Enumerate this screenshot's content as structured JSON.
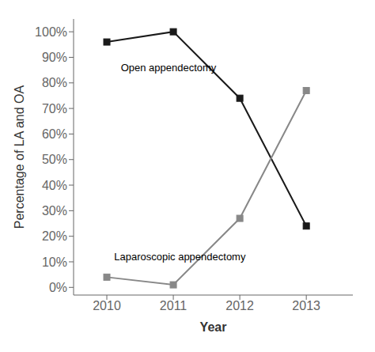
{
  "chart_data": {
    "type": "line",
    "xlabel": "Year",
    "ylabel": "Percentage of LA and OA",
    "x": [
      2010,
      2011,
      2012,
      2013
    ],
    "series": [
      {
        "color": "#1a1a1a",
        "marker": "square",
        "values": [
          96,
          100,
          74,
          24
        ]
      },
      {
        "color": "#888888",
        "marker": "square",
        "values": [
          4,
          1,
          27,
          77
        ]
      }
    ],
    "xlim": [
      2009.5,
      2013.7
    ],
    "xticks": [
      2010,
      2011,
      2012,
      2013
    ],
    "ylim": [
      -3,
      105
    ],
    "yticks": [
      {
        "value": 0,
        "label": "0%"
      },
      {
        "value": 10,
        "label": "10%"
      },
      {
        "value": 20,
        "label": "20%"
      },
      {
        "value": 30,
        "label": "30%"
      },
      {
        "value": 40,
        "label": "40%"
      },
      {
        "value": 50,
        "label": "50%"
      },
      {
        "value": 60,
        "label": "60%"
      },
      {
        "value": 70,
        "label": "70%"
      },
      {
        "value": 80,
        "label": "80%"
      },
      {
        "value": 90,
        "label": "90%"
      },
      {
        "value": 100,
        "label": "100%"
      }
    ],
    "grid": false,
    "annotations": [
      {
        "text": "Open appendectomy",
        "x": 2010.15,
        "y": 86
      },
      {
        "text": "Laparoscopic appendectomy",
        "x": 2010.05,
        "y": 12
      }
    ]
  }
}
